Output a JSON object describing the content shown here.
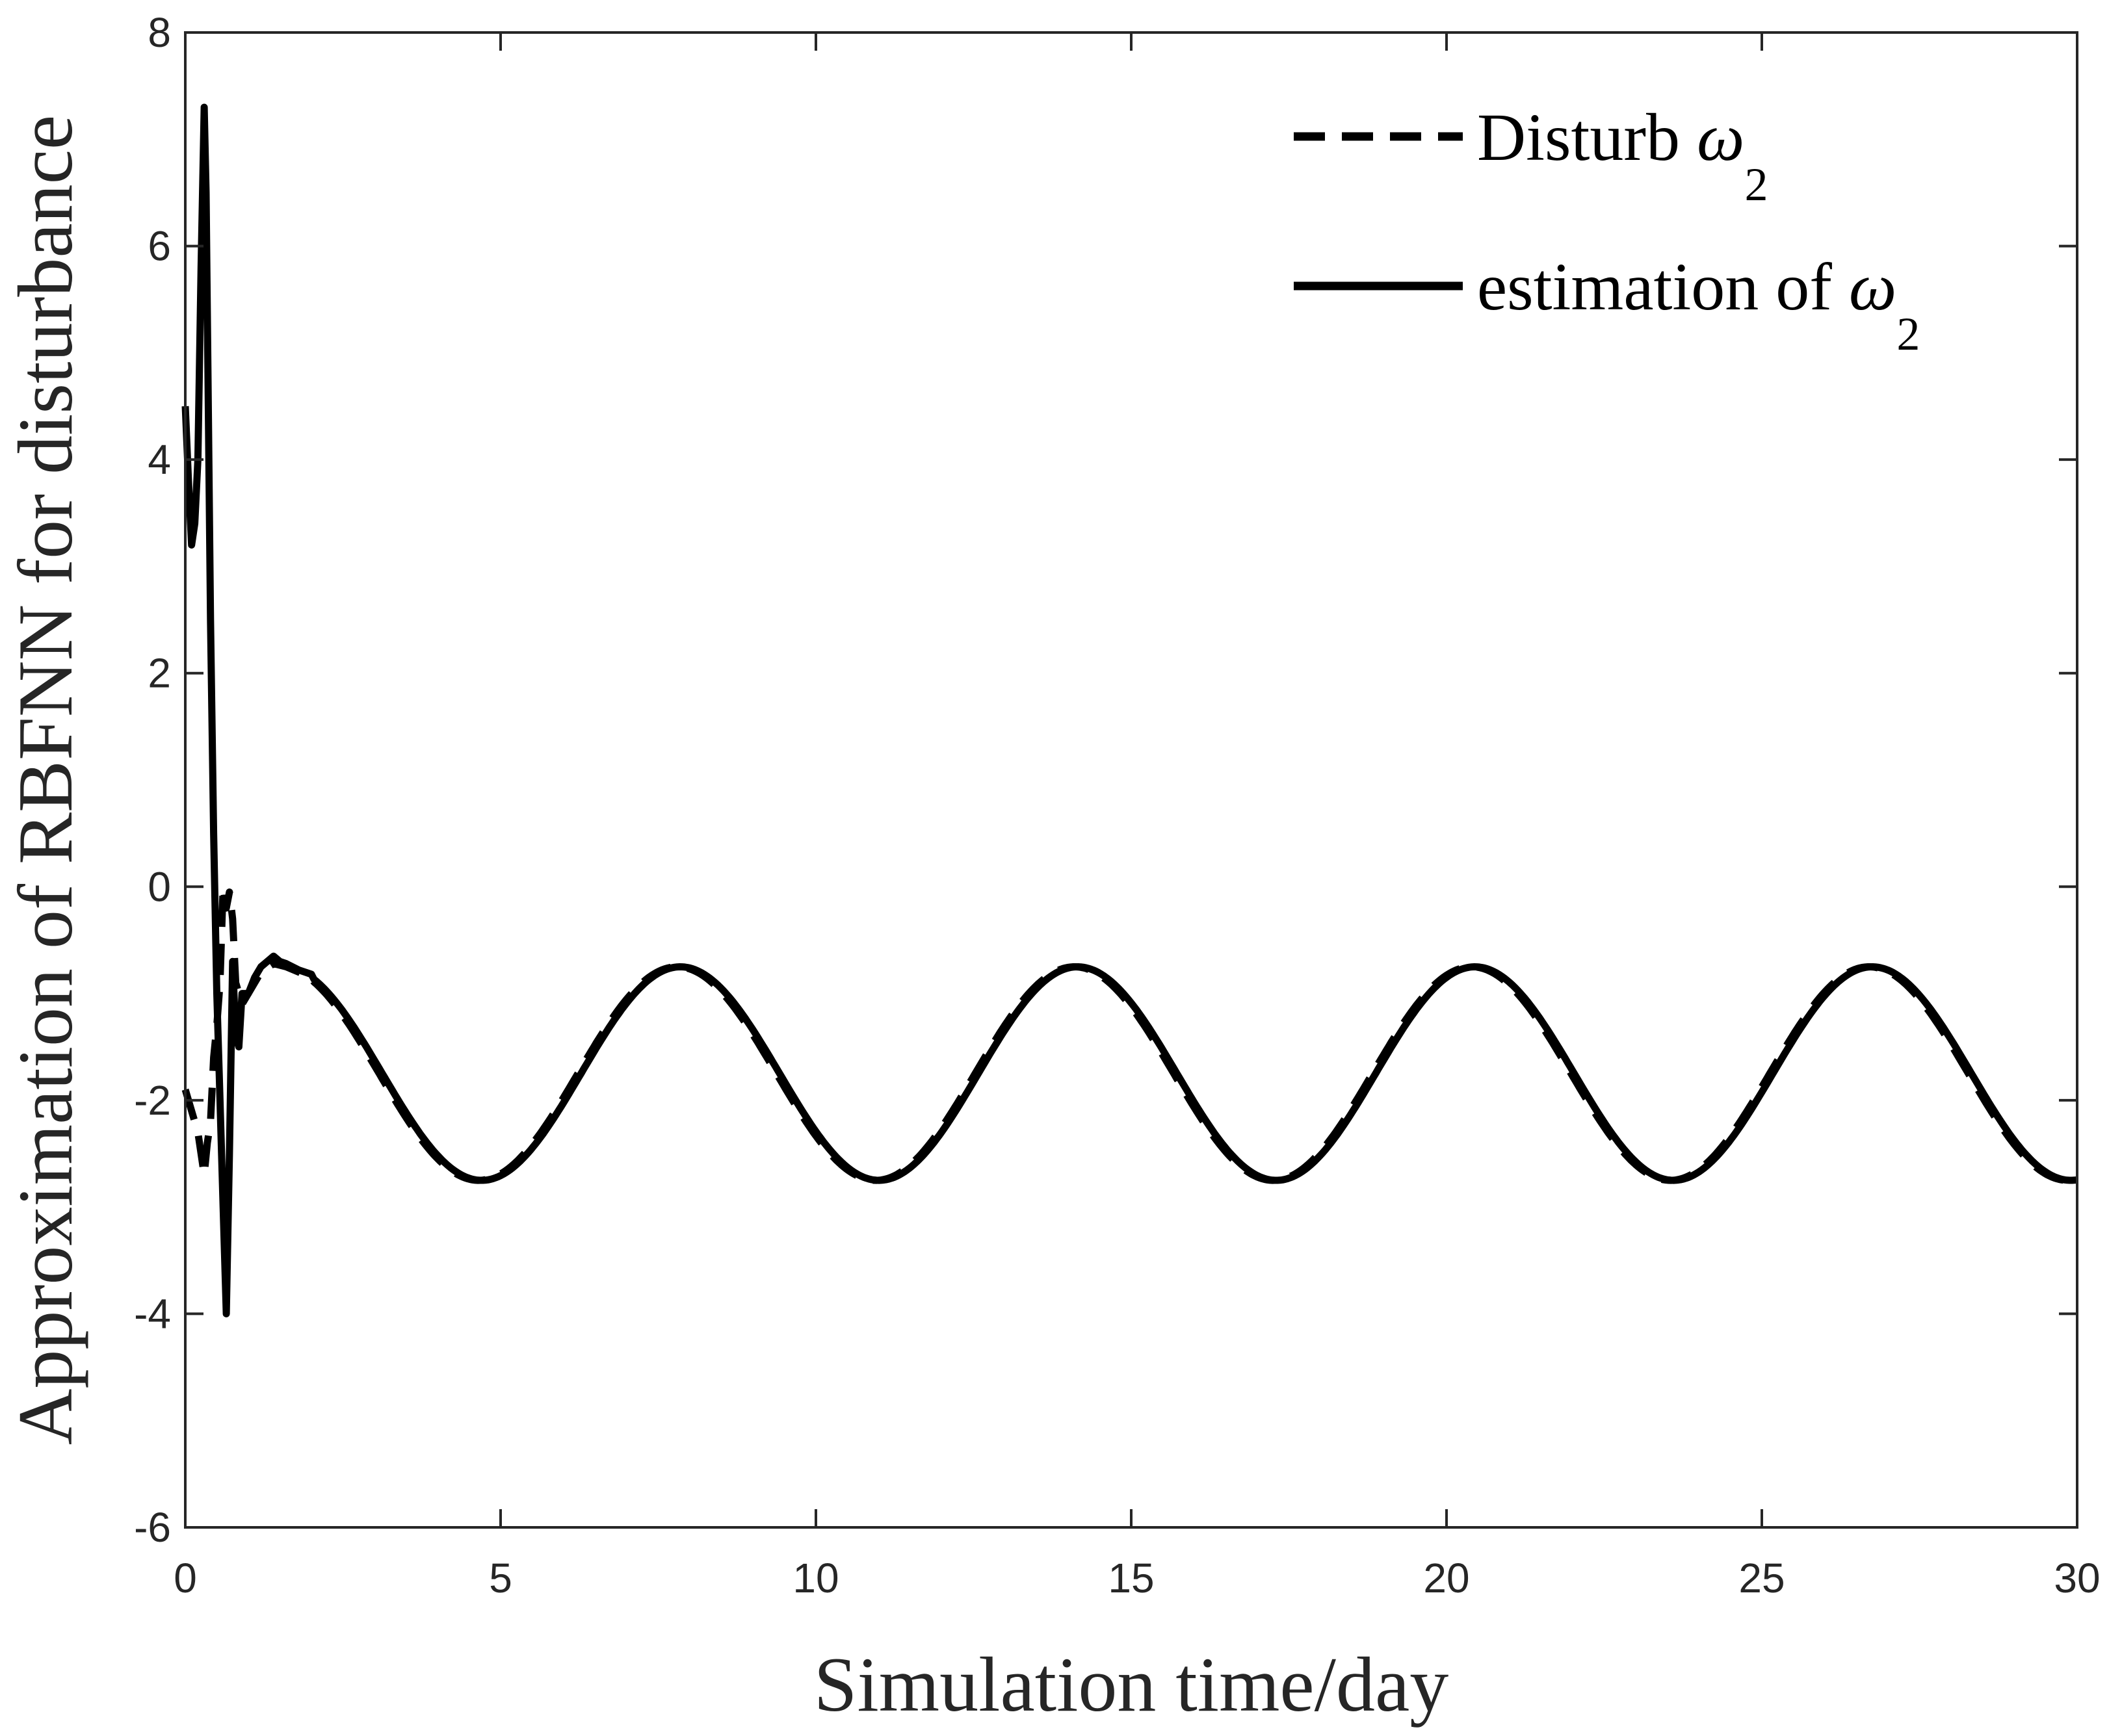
{
  "chart_data": {
    "type": "line",
    "title": "",
    "xlabel": "Simulation time/day",
    "ylabel": "Approximation of RBFNN for disturbance",
    "xlim": [
      0,
      30
    ],
    "ylim": [
      -6,
      8
    ],
    "xticks": [
      0,
      5,
      10,
      15,
      20,
      25,
      30
    ],
    "yticks": [
      -6,
      -4,
      -2,
      0,
      2,
      4,
      6,
      8
    ],
    "xtick_labels": [
      "0",
      "5",
      "10",
      "15",
      "20",
      "25",
      "30"
    ],
    "ytick_labels": [
      "-6",
      "-4",
      "-2",
      "0",
      "2",
      "4",
      "6",
      "8"
    ],
    "grid": false,
    "box": true,
    "legend": {
      "location": "top-right",
      "entries": [
        {
          "text": "Disturb ",
          "symbol": "ω",
          "subscript": "2",
          "style": "dashed"
        },
        {
          "text": "estimation of ",
          "symbol": "ω",
          "subscript": "2",
          "style": "solid"
        }
      ]
    },
    "series": [
      {
        "name": "Disturb ω2",
        "style": "dashed",
        "color": "#000000",
        "x": [
          0,
          0.1,
          0.2,
          0.3,
          0.35,
          0.4,
          0.45,
          0.5,
          0.55,
          0.6,
          0.65,
          0.7,
          0.75,
          0.8,
          0.9,
          1.0,
          1.2,
          1.4,
          1.6,
          1.8,
          2.0
        ],
        "y": [
          -1.9,
          -2.1,
          -2.3,
          -2.7,
          -2.4,
          -2.2,
          -1.6,
          -1.3,
          -0.9,
          0.0,
          -0.2,
          -0.05,
          -0.3,
          -0.9,
          -1.1,
          -1.0,
          -0.8,
          -0.72,
          -0.75,
          -0.8,
          -0.85
        ],
        "periodic_tail": {
          "from": 2.0,
          "to": 30,
          "mean": -1.75,
          "amplitude": 1.0,
          "period": 6.3,
          "phase_peak_x": 7.8
        }
      },
      {
        "name": "estimation of ω2",
        "style": "solid",
        "color": "#000000",
        "x": [
          0,
          0.05,
          0.1,
          0.15,
          0.2,
          0.25,
          0.3,
          0.33,
          0.36,
          0.4,
          0.45,
          0.5,
          0.55,
          0.6,
          0.65,
          0.7,
          0.75,
          0.8,
          0.85,
          0.9,
          1.0,
          1.1,
          1.2,
          1.3,
          1.4,
          1.5,
          1.6,
          1.8,
          2.0
        ],
        "y": [
          4.5,
          3.8,
          3.2,
          3.4,
          4.0,
          5.8,
          7.3,
          6.5,
          4.8,
          2.5,
          0.5,
          -1.0,
          -2.0,
          -3.0,
          -4.0,
          -2.5,
          -0.7,
          -1.4,
          -1.5,
          -1.0,
          -1.0,
          -0.85,
          -0.75,
          -0.7,
          -0.65,
          -0.7,
          -0.72,
          -0.78,
          -0.82
        ],
        "periodic_tail": {
          "from": 2.0,
          "to": 30,
          "mean": -1.75,
          "amplitude": 1.0,
          "period": 6.3,
          "phase_peak_x": 7.85
        }
      }
    ]
  }
}
